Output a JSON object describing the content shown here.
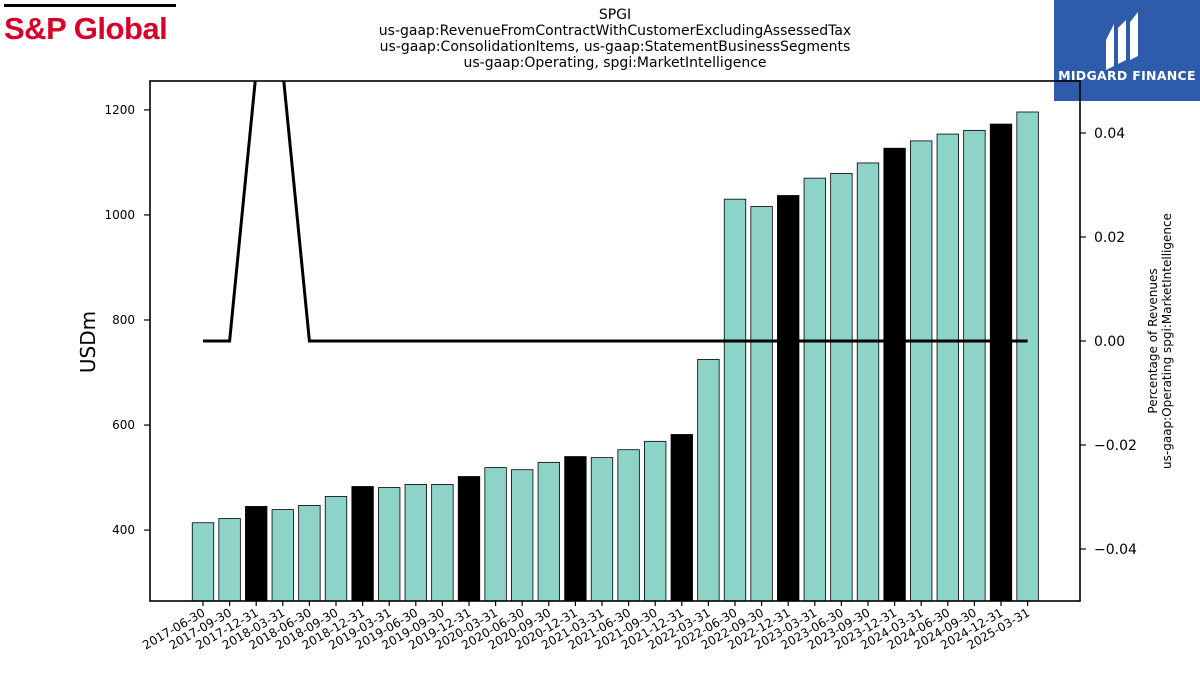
{
  "logos": {
    "left_text": "S&P Global",
    "left_color": "#d6002a",
    "right_text": "MIDGARD FINANCE",
    "right_bg": "#2f5bab"
  },
  "chart_data": {
    "type": "bar",
    "title_lines": [
      "SPGI",
      "us-gaap:RevenueFromContractWithCustomerExcludingAssessedTax",
      "us-gaap:ConsolidationItems, us-gaap:StatementBusinessSegments",
      "us-gaap:Operating, spgi:MarketIntelligence"
    ],
    "ylabel": "USDm",
    "y2label_lines": [
      "Percentage of Revenues",
      "us-gaap:Operating spgi:MarketIntelligence"
    ],
    "ylim": [
      265,
      1255
    ],
    "y2lim": [
      -0.05,
      0.05
    ],
    "yticks": [
      400,
      600,
      800,
      1000,
      1200
    ],
    "y2ticks": [
      -0.04,
      -0.02,
      0.0,
      0.02,
      0.04
    ],
    "y2tick_labels": [
      "−0.04",
      "−0.02",
      "0.00",
      "0.02",
      "0.04"
    ],
    "categories": [
      "2017-06-30",
      "2017-09-30",
      "2017-12-31",
      "2018-03-31",
      "2018-06-30",
      "2018-09-30",
      "2018-12-31",
      "2019-03-31",
      "2019-06-30",
      "2019-09-30",
      "2019-12-31",
      "2020-03-31",
      "2020-06-30",
      "2020-09-30",
      "2020-12-31",
      "2021-03-31",
      "2021-06-30",
      "2021-09-30",
      "2021-12-31",
      "2022-03-31",
      "2022-06-30",
      "2022-09-30",
      "2022-12-31",
      "2023-03-31",
      "2023-06-30",
      "2023-09-30",
      "2023-12-31",
      "2024-03-31",
      "2024-06-30",
      "2024-09-30",
      "2024-12-31",
      "2025-03-31"
    ],
    "series": [
      {
        "values": [
          414,
          422,
          445,
          439,
          447,
          464,
          483,
          481,
          487,
          487,
          502,
          519,
          515,
          529,
          540,
          538,
          553,
          569,
          582,
          725,
          1030,
          1016,
          1037,
          1070,
          1079,
          1099,
          1127,
          1141,
          1154,
          1161,
          1173,
          1196
        ],
        "highlight_indices": [
          2,
          6,
          10,
          14,
          18,
          22,
          26,
          30
        ],
        "color": "#8dd3c7",
        "highlight_color": "#000000"
      },
      {
        "axis": "right",
        "line": [
          0,
          0,
          "up",
          "up",
          0,
          0,
          0,
          0,
          0,
          0,
          0,
          0,
          0,
          0,
          0,
          0,
          0,
          0,
          0,
          0,
          0,
          0,
          0,
          0,
          0,
          0,
          0,
          0,
          0,
          0,
          0,
          0
        ],
        "color": "#000000"
      }
    ]
  }
}
